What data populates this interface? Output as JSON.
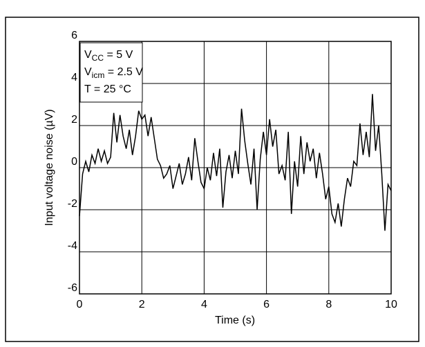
{
  "chart_data": {
    "type": "line",
    "xlabel": "Time (s)",
    "ylabel": "Input voltage noise (µV)",
    "annotations": [
      {
        "text": "V",
        "sub": "CC",
        "tail": " = 5 V"
      },
      {
        "text": "V",
        "sub": "icm",
        "tail": " = 2.5 V"
      },
      {
        "text": "T = 25 °C"
      }
    ],
    "x": [
      0,
      0.1,
      0.2,
      0.3,
      0.4,
      0.5,
      0.6,
      0.7,
      0.8,
      0.9,
      1,
      1.1,
      1.2,
      1.3,
      1.4,
      1.5,
      1.6,
      1.7,
      1.8,
      1.9,
      2,
      2.1,
      2.2,
      2.3,
      2.4,
      2.5,
      2.6,
      2.7,
      2.8,
      2.9,
      3,
      3.1,
      3.2,
      3.3,
      3.4,
      3.5,
      3.6,
      3.7,
      3.8,
      3.9,
      4,
      4.1,
      4.2,
      4.3,
      4.4,
      4.5,
      4.6,
      4.7,
      4.8,
      4.9,
      5,
      5.1,
      5.2,
      5.3,
      5.4,
      5.5,
      5.6,
      5.7,
      5.8,
      5.9,
      6,
      6.1,
      6.2,
      6.3,
      6.4,
      6.5,
      6.6,
      6.7,
      6.8,
      6.9,
      7,
      7.1,
      7.2,
      7.3,
      7.4,
      7.5,
      7.6,
      7.7,
      7.8,
      7.9,
      8,
      8.1,
      8.2,
      8.3,
      8.4,
      8.5,
      8.6,
      8.7,
      8.8,
      8.9,
      9,
      9.1,
      9.2,
      9.3,
      9.4,
      9.5,
      9.6,
      9.7,
      9.8,
      9.9,
      10
    ],
    "series": [
      {
        "color": "#000000",
        "values": [
          -2.3,
          -0.3,
          0.3,
          -0.2,
          0.6,
          0.2,
          0.9,
          0.3,
          0.8,
          0.2,
          0.5,
          2.6,
          1.2,
          2.5,
          1.5,
          0.9,
          1.8,
          0.6,
          1.5,
          2.7,
          2.3,
          2.5,
          1.5,
          2.4,
          1.4,
          0.4,
          0.1,
          -0.5,
          -0.3,
          0.1,
          -1.0,
          -0.4,
          0.2,
          -0.8,
          -0.3,
          0.5,
          -0.6,
          1.4,
          0.3,
          -0.7,
          -1.0,
          0.0,
          -0.6,
          0.7,
          -0.4,
          0.9,
          -1.9,
          -0.2,
          0.6,
          -0.5,
          0.8,
          -0.3,
          2.8,
          1.3,
          0.2,
          -0.8,
          0.9,
          -2.0,
          0.4,
          1.7,
          0.6,
          2.3,
          1.0,
          1.8,
          -0.3,
          0.1,
          -0.6,
          1.7,
          -2.2,
          0.3,
          -0.9,
          1.5,
          -0.3,
          1.2,
          0.3,
          0.9,
          -0.5,
          0.7,
          -0.3,
          -1.5,
          -0.9,
          -2.2,
          -2.6,
          -1.7,
          -2.8,
          -1.5,
          -0.5,
          -0.9,
          0.3,
          0.1,
          2.1,
          0.6,
          1.7,
          0.5,
          3.5,
          0.8,
          2.0,
          -0.3,
          -3.0,
          -0.8,
          -1.1
        ]
      }
    ],
    "xlim": [
      0,
      10
    ],
    "xticks": [
      0,
      2,
      4,
      6,
      8,
      10
    ],
    "ylim": [
      -6,
      6
    ],
    "yticks": [
      -6,
      -4,
      -2,
      0,
      2,
      4,
      6
    ],
    "grid": true
  }
}
